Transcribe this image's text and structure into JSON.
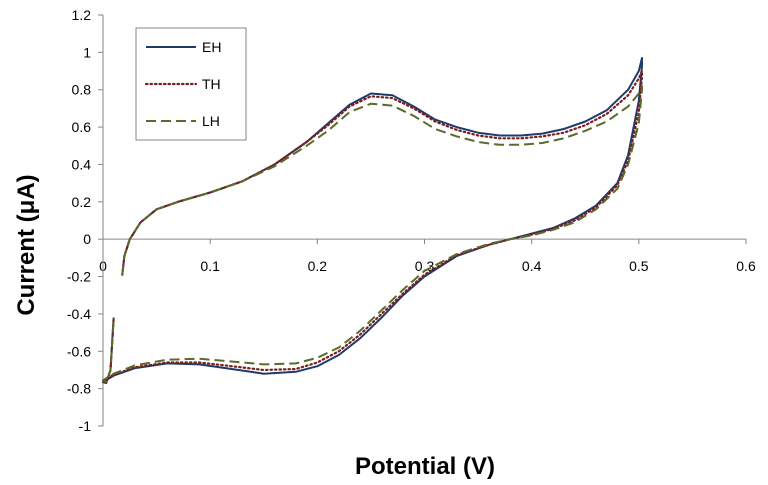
{
  "chart_data": {
    "type": "line",
    "title": "",
    "xlabel": "Potential (V)",
    "ylabel": "Current (μA)",
    "xlim": [
      0,
      0.6
    ],
    "ylim": [
      -1,
      1.2
    ],
    "x_ticks": [
      "0",
      "0.1",
      "0.2",
      "0.3",
      "0.4",
      "0.5",
      "0.6"
    ],
    "y_ticks": [
      "1.2",
      "1",
      "0.8",
      "0.6",
      "0.4",
      "0.2",
      "0",
      "-0.2",
      "-0.4",
      "-0.6",
      "-0.8",
      "-1"
    ],
    "grid": false,
    "legend_position": "top-left",
    "series": [
      {
        "name": "EH",
        "color": "#1f3a6b",
        "dash": "solid",
        "points": [
          [
            0.018,
            -0.19
          ],
          [
            0.02,
            -0.09
          ],
          [
            0.025,
            0.0
          ],
          [
            0.035,
            0.09
          ],
          [
            0.05,
            0.16
          ],
          [
            0.07,
            0.2
          ],
          [
            0.1,
            0.25
          ],
          [
            0.13,
            0.31
          ],
          [
            0.16,
            0.4
          ],
          [
            0.19,
            0.52
          ],
          [
            0.21,
            0.62
          ],
          [
            0.23,
            0.72
          ],
          [
            0.25,
            0.78
          ],
          [
            0.27,
            0.77
          ],
          [
            0.29,
            0.71
          ],
          [
            0.31,
            0.64
          ],
          [
            0.33,
            0.6
          ],
          [
            0.35,
            0.57
          ],
          [
            0.37,
            0.555
          ],
          [
            0.39,
            0.555
          ],
          [
            0.41,
            0.565
          ],
          [
            0.43,
            0.59
          ],
          [
            0.45,
            0.63
          ],
          [
            0.47,
            0.69
          ],
          [
            0.49,
            0.8
          ],
          [
            0.5,
            0.9
          ],
          [
            0.503,
            0.97
          ],
          [
            0.503,
            0.93
          ],
          [
            0.5,
            0.74
          ],
          [
            0.49,
            0.45
          ],
          [
            0.48,
            0.3
          ],
          [
            0.46,
            0.18
          ],
          [
            0.44,
            0.11
          ],
          [
            0.42,
            0.06
          ],
          [
            0.4,
            0.03
          ],
          [
            0.38,
            0.0
          ],
          [
            0.36,
            -0.03
          ],
          [
            0.33,
            -0.09
          ],
          [
            0.3,
            -0.2
          ],
          [
            0.28,
            -0.3
          ],
          [
            0.26,
            -0.42
          ],
          [
            0.24,
            -0.53
          ],
          [
            0.22,
            -0.62
          ],
          [
            0.2,
            -0.68
          ],
          [
            0.18,
            -0.71
          ],
          [
            0.15,
            -0.72
          ],
          [
            0.12,
            -0.695
          ],
          [
            0.09,
            -0.67
          ],
          [
            0.06,
            -0.665
          ],
          [
            0.03,
            -0.69
          ],
          [
            0.01,
            -0.73
          ],
          [
            0.0,
            -0.765
          ],
          [
            0.003,
            -0.77
          ],
          [
            0.007,
            -0.7
          ],
          [
            0.01,
            -0.42
          ]
        ]
      },
      {
        "name": "TH",
        "color": "#7a1f1f",
        "dash": "dot",
        "points": [
          [
            0.018,
            -0.19
          ],
          [
            0.02,
            -0.09
          ],
          [
            0.025,
            0.0
          ],
          [
            0.035,
            0.09
          ],
          [
            0.05,
            0.16
          ],
          [
            0.07,
            0.2
          ],
          [
            0.1,
            0.25
          ],
          [
            0.13,
            0.31
          ],
          [
            0.16,
            0.4
          ],
          [
            0.19,
            0.52
          ],
          [
            0.21,
            0.61
          ],
          [
            0.23,
            0.71
          ],
          [
            0.25,
            0.765
          ],
          [
            0.27,
            0.755
          ],
          [
            0.29,
            0.7
          ],
          [
            0.31,
            0.63
          ],
          [
            0.33,
            0.585
          ],
          [
            0.35,
            0.555
          ],
          [
            0.37,
            0.54
          ],
          [
            0.39,
            0.54
          ],
          [
            0.41,
            0.55
          ],
          [
            0.43,
            0.57
          ],
          [
            0.45,
            0.61
          ],
          [
            0.47,
            0.67
          ],
          [
            0.49,
            0.77
          ],
          [
            0.5,
            0.86
          ],
          [
            0.503,
            0.9
          ],
          [
            0.503,
            0.87
          ],
          [
            0.5,
            0.68
          ],
          [
            0.49,
            0.42
          ],
          [
            0.48,
            0.29
          ],
          [
            0.46,
            0.17
          ],
          [
            0.44,
            0.1
          ],
          [
            0.42,
            0.055
          ],
          [
            0.4,
            0.025
          ],
          [
            0.38,
            0.0
          ],
          [
            0.36,
            -0.03
          ],
          [
            0.33,
            -0.085
          ],
          [
            0.3,
            -0.19
          ],
          [
            0.28,
            -0.29
          ],
          [
            0.26,
            -0.4
          ],
          [
            0.24,
            -0.51
          ],
          [
            0.22,
            -0.6
          ],
          [
            0.2,
            -0.66
          ],
          [
            0.18,
            -0.695
          ],
          [
            0.15,
            -0.7
          ],
          [
            0.12,
            -0.68
          ],
          [
            0.09,
            -0.66
          ],
          [
            0.06,
            -0.66
          ],
          [
            0.03,
            -0.685
          ],
          [
            0.01,
            -0.725
          ],
          [
            0.0,
            -0.76
          ],
          [
            0.003,
            -0.77
          ],
          [
            0.007,
            -0.7
          ],
          [
            0.01,
            -0.42
          ]
        ]
      },
      {
        "name": "LH",
        "color": "#5a6b2c",
        "dash": "dash",
        "points": [
          [
            0.018,
            -0.19
          ],
          [
            0.02,
            -0.09
          ],
          [
            0.025,
            0.0
          ],
          [
            0.035,
            0.09
          ],
          [
            0.05,
            0.16
          ],
          [
            0.07,
            0.2
          ],
          [
            0.1,
            0.25
          ],
          [
            0.13,
            0.31
          ],
          [
            0.16,
            0.39
          ],
          [
            0.19,
            0.5
          ],
          [
            0.21,
            0.58
          ],
          [
            0.23,
            0.68
          ],
          [
            0.25,
            0.725
          ],
          [
            0.27,
            0.715
          ],
          [
            0.29,
            0.66
          ],
          [
            0.31,
            0.59
          ],
          [
            0.33,
            0.55
          ],
          [
            0.35,
            0.52
          ],
          [
            0.37,
            0.505
          ],
          [
            0.39,
            0.505
          ],
          [
            0.41,
            0.515
          ],
          [
            0.43,
            0.54
          ],
          [
            0.45,
            0.58
          ],
          [
            0.47,
            0.63
          ],
          [
            0.49,
            0.71
          ],
          [
            0.5,
            0.78
          ],
          [
            0.503,
            0.82
          ],
          [
            0.503,
            0.8
          ],
          [
            0.5,
            0.62
          ],
          [
            0.49,
            0.4
          ],
          [
            0.48,
            0.27
          ],
          [
            0.46,
            0.16
          ],
          [
            0.44,
            0.09
          ],
          [
            0.42,
            0.05
          ],
          [
            0.4,
            0.02
          ],
          [
            0.38,
            0.0
          ],
          [
            0.36,
            -0.025
          ],
          [
            0.33,
            -0.08
          ],
          [
            0.3,
            -0.17
          ],
          [
            0.28,
            -0.27
          ],
          [
            0.26,
            -0.38
          ],
          [
            0.24,
            -0.49
          ],
          [
            0.22,
            -0.58
          ],
          [
            0.2,
            -0.635
          ],
          [
            0.18,
            -0.665
          ],
          [
            0.15,
            -0.67
          ],
          [
            0.12,
            -0.655
          ],
          [
            0.09,
            -0.64
          ],
          [
            0.06,
            -0.645
          ],
          [
            0.03,
            -0.675
          ],
          [
            0.01,
            -0.72
          ],
          [
            0.0,
            -0.755
          ],
          [
            0.003,
            -0.765
          ],
          [
            0.007,
            -0.7
          ],
          [
            0.01,
            -0.42
          ]
        ]
      }
    ]
  }
}
